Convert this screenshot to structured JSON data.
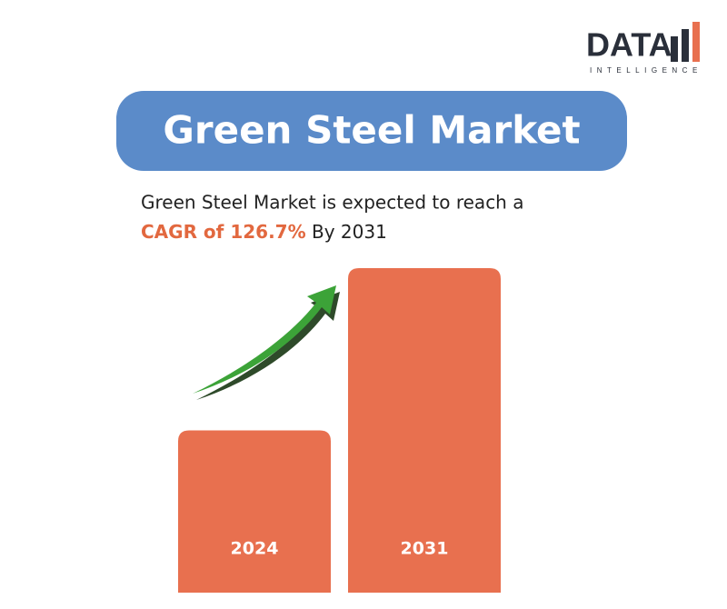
{
  "logo": {
    "name": "DATA",
    "tagline": "INTELLIGENCE"
  },
  "chart_data": {
    "type": "bar",
    "title": "Green Steel Market",
    "text_line1": "Green Steel Market is expected to reach a",
    "text_highlight": "CAGR of 126.7%",
    "text_line2": "By 2031",
    "categories": [
      "2024",
      "2031"
    ],
    "values": [
      50,
      100
    ],
    "color": "#e8704f",
    "ylim": [
      0,
      100
    ]
  }
}
